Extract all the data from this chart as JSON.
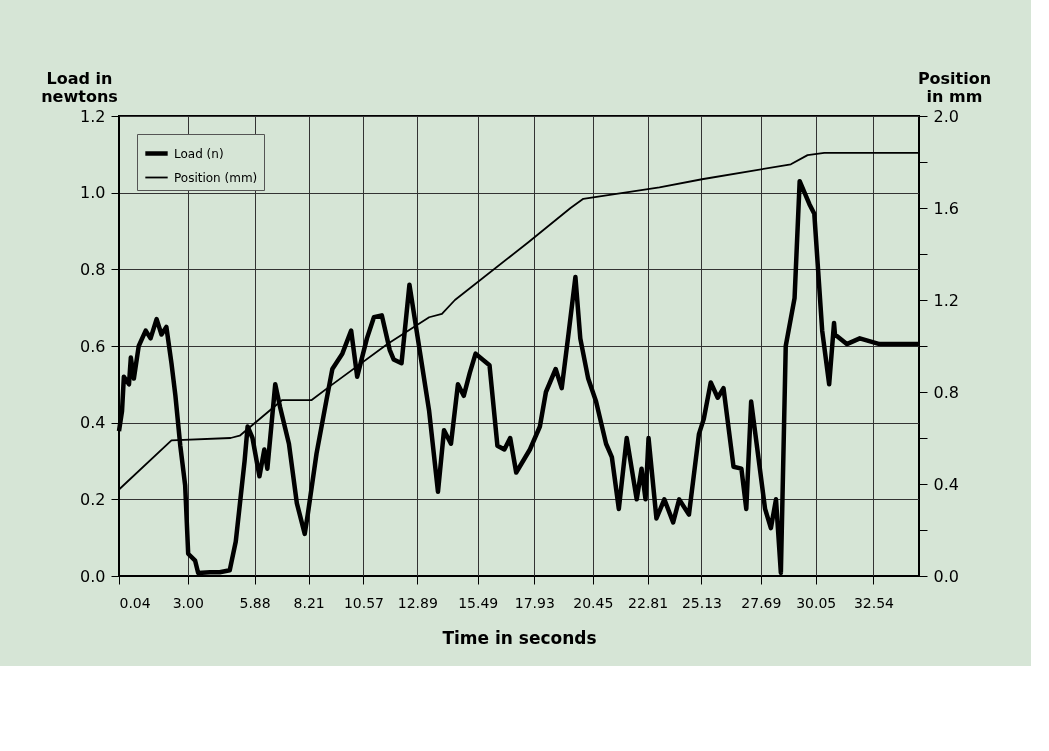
{
  "chart_data": {
    "type": "line",
    "xlabel": "Time in seconds",
    "ylabel": "Load in newtons",
    "y2label": "Position in mm",
    "xlim": [
      0.04,
      34.5
    ],
    "xticks": [
      0.04,
      {
        "value": 3,
        "label": "3.00"
      },
      5.88,
      8.21,
      10.57,
      12.89,
      15.49,
      17.93,
      20.45,
      22.81,
      25.13,
      27.69,
      30.05,
      32.54
    ],
    "ylim": [
      0,
      1.2
    ],
    "yticks": [
      {
        "value": 0,
        "label": "0.0"
      },
      0.2,
      0.4,
      0.6,
      0.8,
      {
        "value": 1,
        "label": "1.0"
      },
      1.2
    ],
    "y2lim": [
      0,
      2
    ],
    "y2ticks": [
      {
        "value": 0,
        "label": "0.0"
      },
      {
        "value": 0.2,
        "label": null
      },
      0.4,
      {
        "value": 0.6,
        "label": null
      },
      0.8,
      {
        "value": 1,
        "label": null
      },
      1.2,
      {
        "value": 1.4,
        "label": null
      },
      1.6,
      {
        "value": 1.8,
        "label": null
      },
      {
        "value": 2,
        "label": "2.0"
      }
    ],
    "grid": true,
    "legend": "top left",
    "line_style": "solid",
    "marker": "none",
    "series": [
      {
        "name": "Load (n)",
        "color": "#000000",
        "x": [
          0.04,
          0.17,
          0.25,
          0.47,
          0.55,
          0.68,
          0.89,
          1.19,
          1.4,
          1.66,
          1.87,
          2.08,
          2.3,
          2.47,
          2.68,
          2.89,
          3.02,
          3.32,
          3.45,
          3.96,
          4.38,
          4.81,
          5.07,
          5.45,
          5.58,
          5.79,
          6.09,
          6.3,
          6.43,
          6.77,
          6.98,
          7.36,
          7.7,
          8.04,
          8.17,
          8.55,
          8.98,
          9.23,
          9.66,
          10.04,
          10.3,
          10.72,
          11.02,
          11.36,
          11.7,
          11.87,
          12.21,
          12.55,
          13.4,
          13.78,
          14.04,
          14.34,
          14.64,
          14.89,
          15.15,
          15.4,
          16.0,
          16.34,
          16.64,
          16.89,
          17.15,
          17.74,
          18.17,
          18.43,
          18.85,
          19.11,
          19.4,
          19.7,
          19.91,
          20.25,
          20.59,
          21.02,
          21.27,
          21.57,
          21.91,
          22.34,
          22.55,
          22.72,
          22.85,
          23.19,
          23.53,
          23.91,
          24.17,
          24.59,
          25.02,
          25.23,
          25.53,
          25.83,
          26.08,
          26.51,
          26.85,
          27.06,
          27.27,
          27.87,
          28.12,
          28.34,
          28.55,
          28.76,
          29.14,
          29.36,
          29.78,
          29.99,
          30.33,
          30.63,
          30.84,
          30.88,
          31.39,
          31.95,
          32.8,
          33.09,
          34.5
        ],
        "values": [
          0.378,
          0.43,
          0.52,
          0.5,
          0.57,
          0.515,
          0.6,
          0.64,
          0.62,
          0.67,
          0.63,
          0.65,
          0.555,
          0.47,
          0.34,
          0.236,
          0.058,
          0.04,
          0.008,
          0.01,
          0.01,
          0.015,
          0.09,
          0.3,
          0.39,
          0.36,
          0.26,
          0.33,
          0.28,
          0.5,
          0.44,
          0.345,
          0.19,
          0.11,
          0.16,
          0.32,
          0.46,
          0.54,
          0.58,
          0.64,
          0.52,
          0.62,
          0.675,
          0.68,
          0.59,
          0.565,
          0.555,
          0.76,
          0.43,
          0.22,
          0.38,
          0.345,
          0.5,
          0.47,
          0.53,
          0.58,
          0.55,
          0.34,
          0.33,
          0.36,
          0.27,
          0.33,
          0.39,
          0.48,
          0.54,
          0.49,
          0.63,
          0.78,
          0.62,
          0.515,
          0.455,
          0.345,
          0.31,
          0.175,
          0.36,
          0.2,
          0.28,
          0.2,
          0.36,
          0.15,
          0.2,
          0.14,
          0.2,
          0.16,
          0.37,
          0.41,
          0.505,
          0.465,
          0.49,
          0.285,
          0.28,
          0.175,
          0.455,
          0.175,
          0.125,
          0.2,
          0.008,
          0.6,
          0.725,
          1.03,
          0.97,
          0.945,
          0.64,
          0.5,
          0.66,
          0.63,
          0.605,
          0.62,
          0.605,
          0.605,
          0.605
        ]
      },
      {
        "name": "Position (mm)",
        "color": "#000000",
        "axis": "y2",
        "x": [
          0.04,
          2.3,
          4.85,
          5.24,
          7.07,
          8.34,
          9.19,
          11.62,
          13.4,
          13.95,
          14.51,
          17.66,
          19.49,
          20.04,
          23.32,
          25.15,
          28.98,
          29.7,
          30.42,
          34.5
        ],
        "values": [
          0.376,
          0.59,
          0.6,
          0.61,
          0.765,
          0.765,
          0.83,
          1.01,
          1.125,
          1.14,
          1.2,
          1.45,
          1.6,
          1.64,
          1.69,
          1.725,
          1.79,
          1.83,
          1.84,
          1.84
        ]
      }
    ]
  }
}
